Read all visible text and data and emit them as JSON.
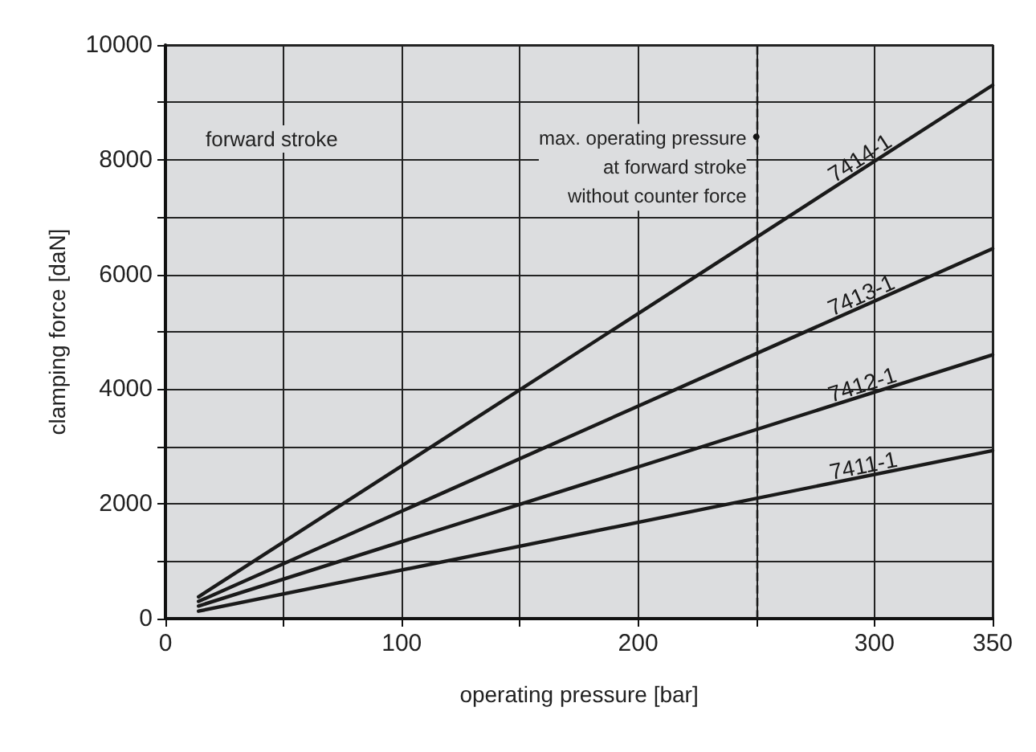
{
  "chart_data": {
    "type": "line",
    "xlabel": "operating pressure [bar]",
    "ylabel": "clamping force [daN]",
    "xlim": [
      0,
      350
    ],
    "ylim": [
      0,
      10000
    ],
    "xticks": [
      0,
      {
        "value": 50,
        "label": null
      },
      100,
      {
        "value": 150,
        "label": null
      },
      200,
      {
        "value": 250,
        "label": null
      },
      300,
      350
    ],
    "yticks": [
      0,
      {
        "value": 1000,
        "label": null
      },
      2000,
      {
        "value": 3000,
        "label": null
      },
      4000,
      {
        "value": 5000,
        "label": null
      },
      6000,
      {
        "value": 7000,
        "label": null
      },
      8000,
      {
        "value": 9000,
        "label": null
      },
      10000
    ],
    "x": [
      14,
      350
    ],
    "grid": true,
    "legend": false,
    "marker": "none",
    "line_style": "solid",
    "series": [
      {
        "name": "7414-1",
        "color": "#1a1a1a",
        "values": [
          380,
          9300
        ]
      },
      {
        "name": "7413-1",
        "color": "#1a1a1a",
        "values": [
          300,
          6450
        ]
      },
      {
        "name": "7412-1",
        "color": "#1a1a1a",
        "values": [
          220,
          4600
        ]
      },
      {
        "name": "7411-1",
        "color": "#1a1a1a",
        "values": [
          130,
          2930
        ]
      }
    ],
    "ref_lines": [
      {
        "axis": "x",
        "value": 250,
        "color": "#1a1a1a",
        "line_style": "dashed"
      }
    ],
    "annotations": [
      "forward stroke",
      {
        "text": "max. operating pressure\nat forward stroke\nwithout counter force",
        "x": 250,
        "y": 8400
      }
    ]
  }
}
